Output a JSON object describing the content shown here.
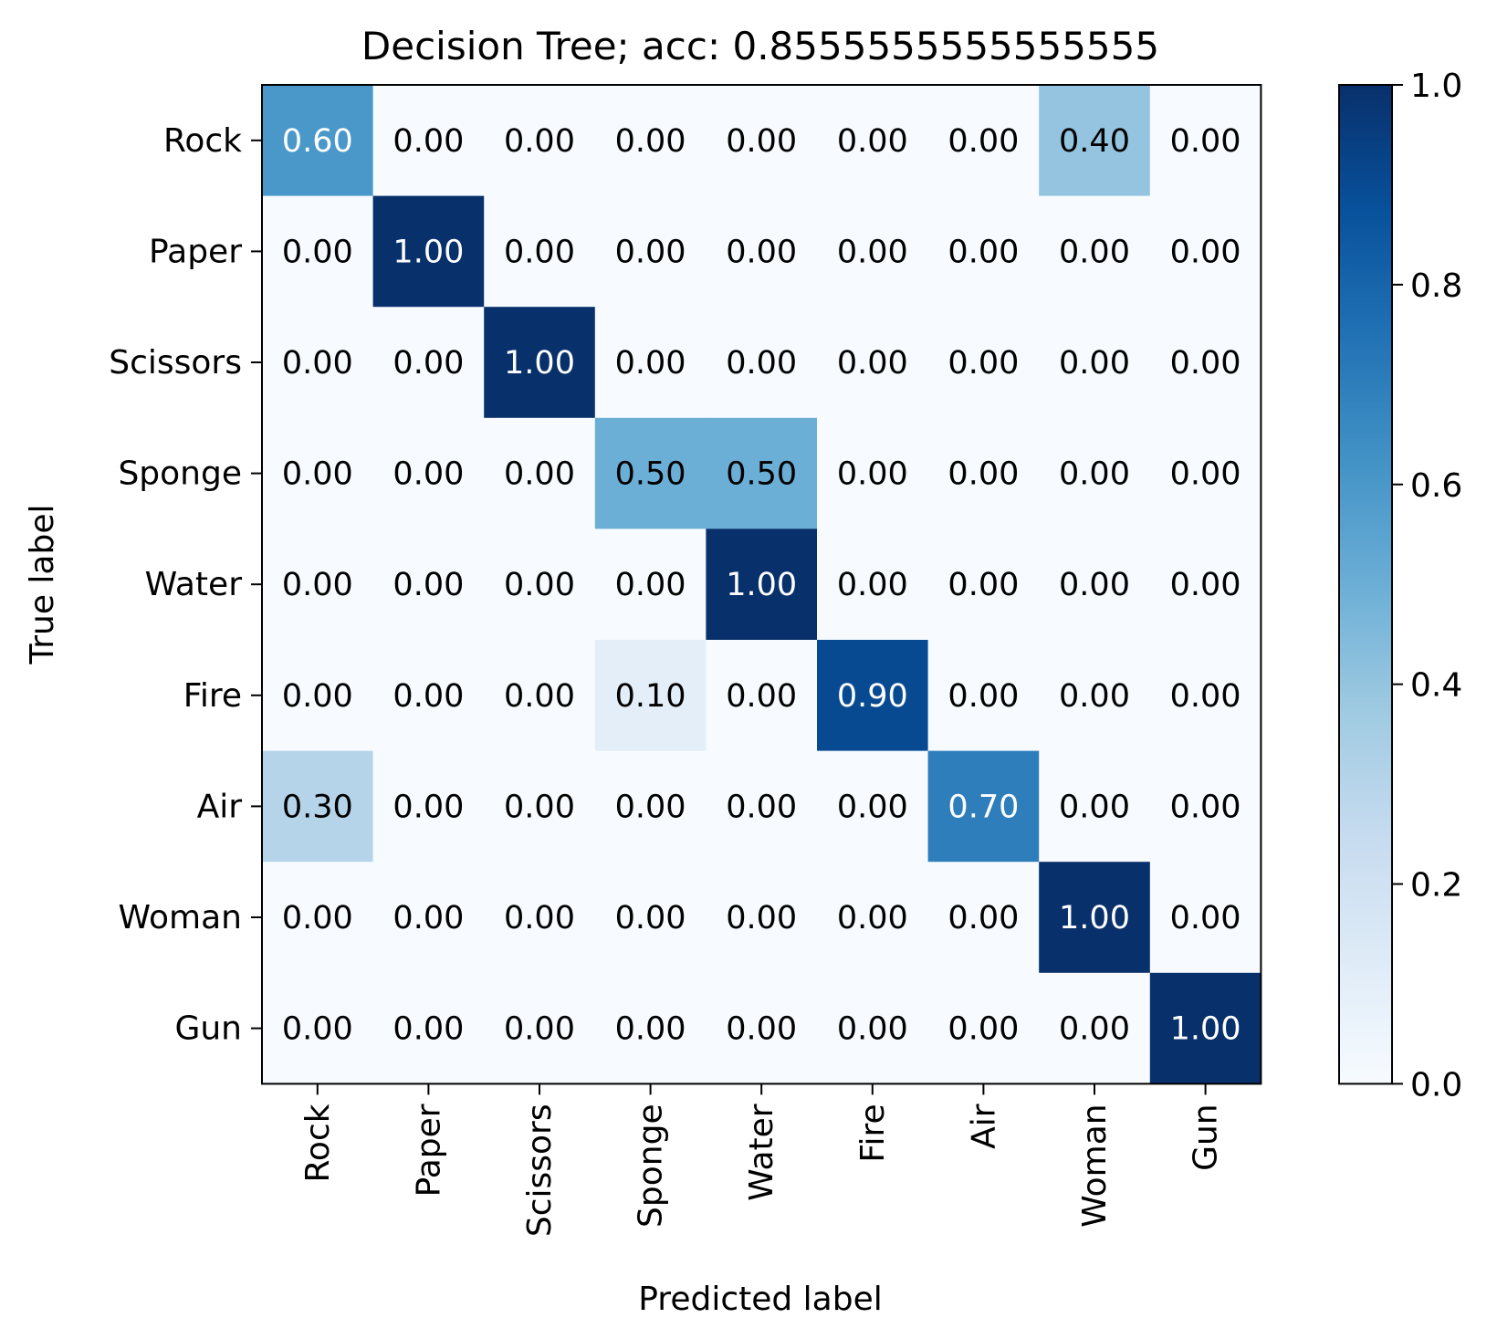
{
  "chart_data": {
    "type": "heatmap",
    "title": "Decision Tree; acc: 0.8555555555555555",
    "xlabel": "Predicted label",
    "ylabel": "True label",
    "x_categories": [
      "Rock",
      "Paper",
      "Scissors",
      "Sponge",
      "Water",
      "Fire",
      "Air",
      "Woman",
      "Gun"
    ],
    "y_categories": [
      "Rock",
      "Paper",
      "Scissors",
      "Sponge",
      "Water",
      "Fire",
      "Air",
      "Woman",
      "Gun"
    ],
    "values": [
      [
        0.6,
        0.0,
        0.0,
        0.0,
        0.0,
        0.0,
        0.0,
        0.4,
        0.0
      ],
      [
        0.0,
        1.0,
        0.0,
        0.0,
        0.0,
        0.0,
        0.0,
        0.0,
        0.0
      ],
      [
        0.0,
        0.0,
        1.0,
        0.0,
        0.0,
        0.0,
        0.0,
        0.0,
        0.0
      ],
      [
        0.0,
        0.0,
        0.0,
        0.5,
        0.5,
        0.0,
        0.0,
        0.0,
        0.0
      ],
      [
        0.0,
        0.0,
        0.0,
        0.0,
        1.0,
        0.0,
        0.0,
        0.0,
        0.0
      ],
      [
        0.0,
        0.0,
        0.0,
        0.1,
        0.0,
        0.9,
        0.0,
        0.0,
        0.0
      ],
      [
        0.3,
        0.0,
        0.0,
        0.0,
        0.0,
        0.0,
        0.7,
        0.0,
        0.0
      ],
      [
        0.0,
        0.0,
        0.0,
        0.0,
        0.0,
        0.0,
        0.0,
        1.0,
        0.0
      ],
      [
        0.0,
        0.0,
        0.0,
        0.0,
        0.0,
        0.0,
        0.0,
        0.0,
        1.0
      ]
    ],
    "value_format": "0.00",
    "colormap": "Blues",
    "colormap_stops": [
      "#f7fbff",
      "#deebf7",
      "#c6dbef",
      "#9ecae1",
      "#6baed6",
      "#4292c6",
      "#2171b5",
      "#08519c",
      "#08306b"
    ],
    "text_color_dark": "#000000",
    "text_color_light": "#ffffff",
    "colorbar": {
      "range": [
        0.0,
        1.0
      ],
      "ticks": [
        "0.0",
        "0.2",
        "0.4",
        "0.6",
        "0.8",
        "1.0"
      ]
    },
    "grid": false
  }
}
